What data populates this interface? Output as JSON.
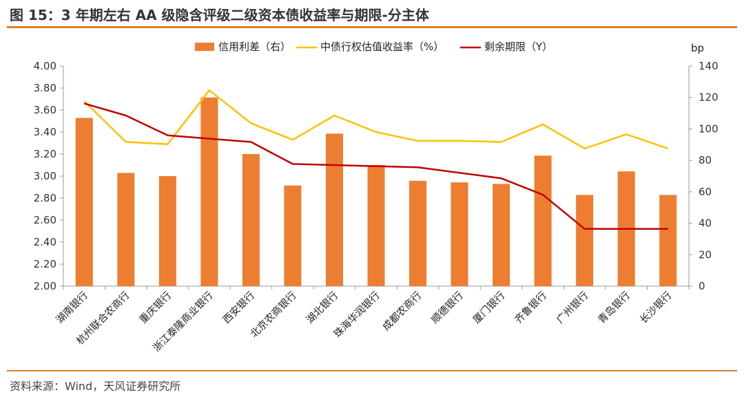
{
  "header": {
    "title": "图 15：3 年期左右 AA 级隐含评级二级资本债收益率与期限-分主体"
  },
  "footer": {
    "source": "资料来源：Wind，天风证券研究所"
  },
  "chart_data": {
    "type": "bar+line",
    "categories": [
      "湖南银行",
      "杭州联合农商行",
      "重庆银行",
      "浙江泰隆商业银行",
      "西安银行",
      "北京农商银行",
      "湖北银行",
      "珠海华润银行",
      "成都农商行",
      "顺德银行",
      "厦门银行",
      "齐鲁银行",
      "广州银行",
      "青岛银行",
      "长沙银行"
    ],
    "series": [
      {
        "name": "信用利差（右）",
        "type": "bar",
        "axis": "right",
        "color": "#ed7d31",
        "values": [
          107,
          72,
          70,
          120,
          84,
          64,
          97,
          77,
          67,
          66,
          65,
          83,
          58,
          73,
          58
        ]
      },
      {
        "name": "中债行权估值收益率（%）",
        "type": "line",
        "axis": "left",
        "color": "#ffc000",
        "values": [
          3.68,
          3.31,
          3.29,
          3.78,
          3.48,
          3.33,
          3.55,
          3.4,
          3.32,
          3.32,
          3.31,
          3.47,
          3.25,
          3.38,
          3.25
        ]
      },
      {
        "name": "剩余期限（Y）",
        "type": "line",
        "axis": "left",
        "color": "#c00000",
        "values": [
          3.66,
          3.55,
          3.37,
          3.34,
          3.31,
          3.11,
          3.1,
          3.09,
          3.08,
          3.03,
          2.98,
          2.83,
          2.52,
          2.52,
          2.52
        ]
      }
    ],
    "y_left": {
      "range": [
        2.0,
        4.0
      ],
      "step": 0.2,
      "ticks": [
        "2.00",
        "2.20",
        "2.40",
        "2.60",
        "2.80",
        "3.00",
        "3.20",
        "3.40",
        "3.60",
        "3.80",
        "4.00"
      ]
    },
    "y_right": {
      "label": "bp",
      "range": [
        0,
        140
      ],
      "step": 20,
      "ticks": [
        "0",
        "20",
        "40",
        "60",
        "80",
        "100",
        "120",
        "140"
      ]
    },
    "legend_position": "top-center",
    "grid": false
  }
}
